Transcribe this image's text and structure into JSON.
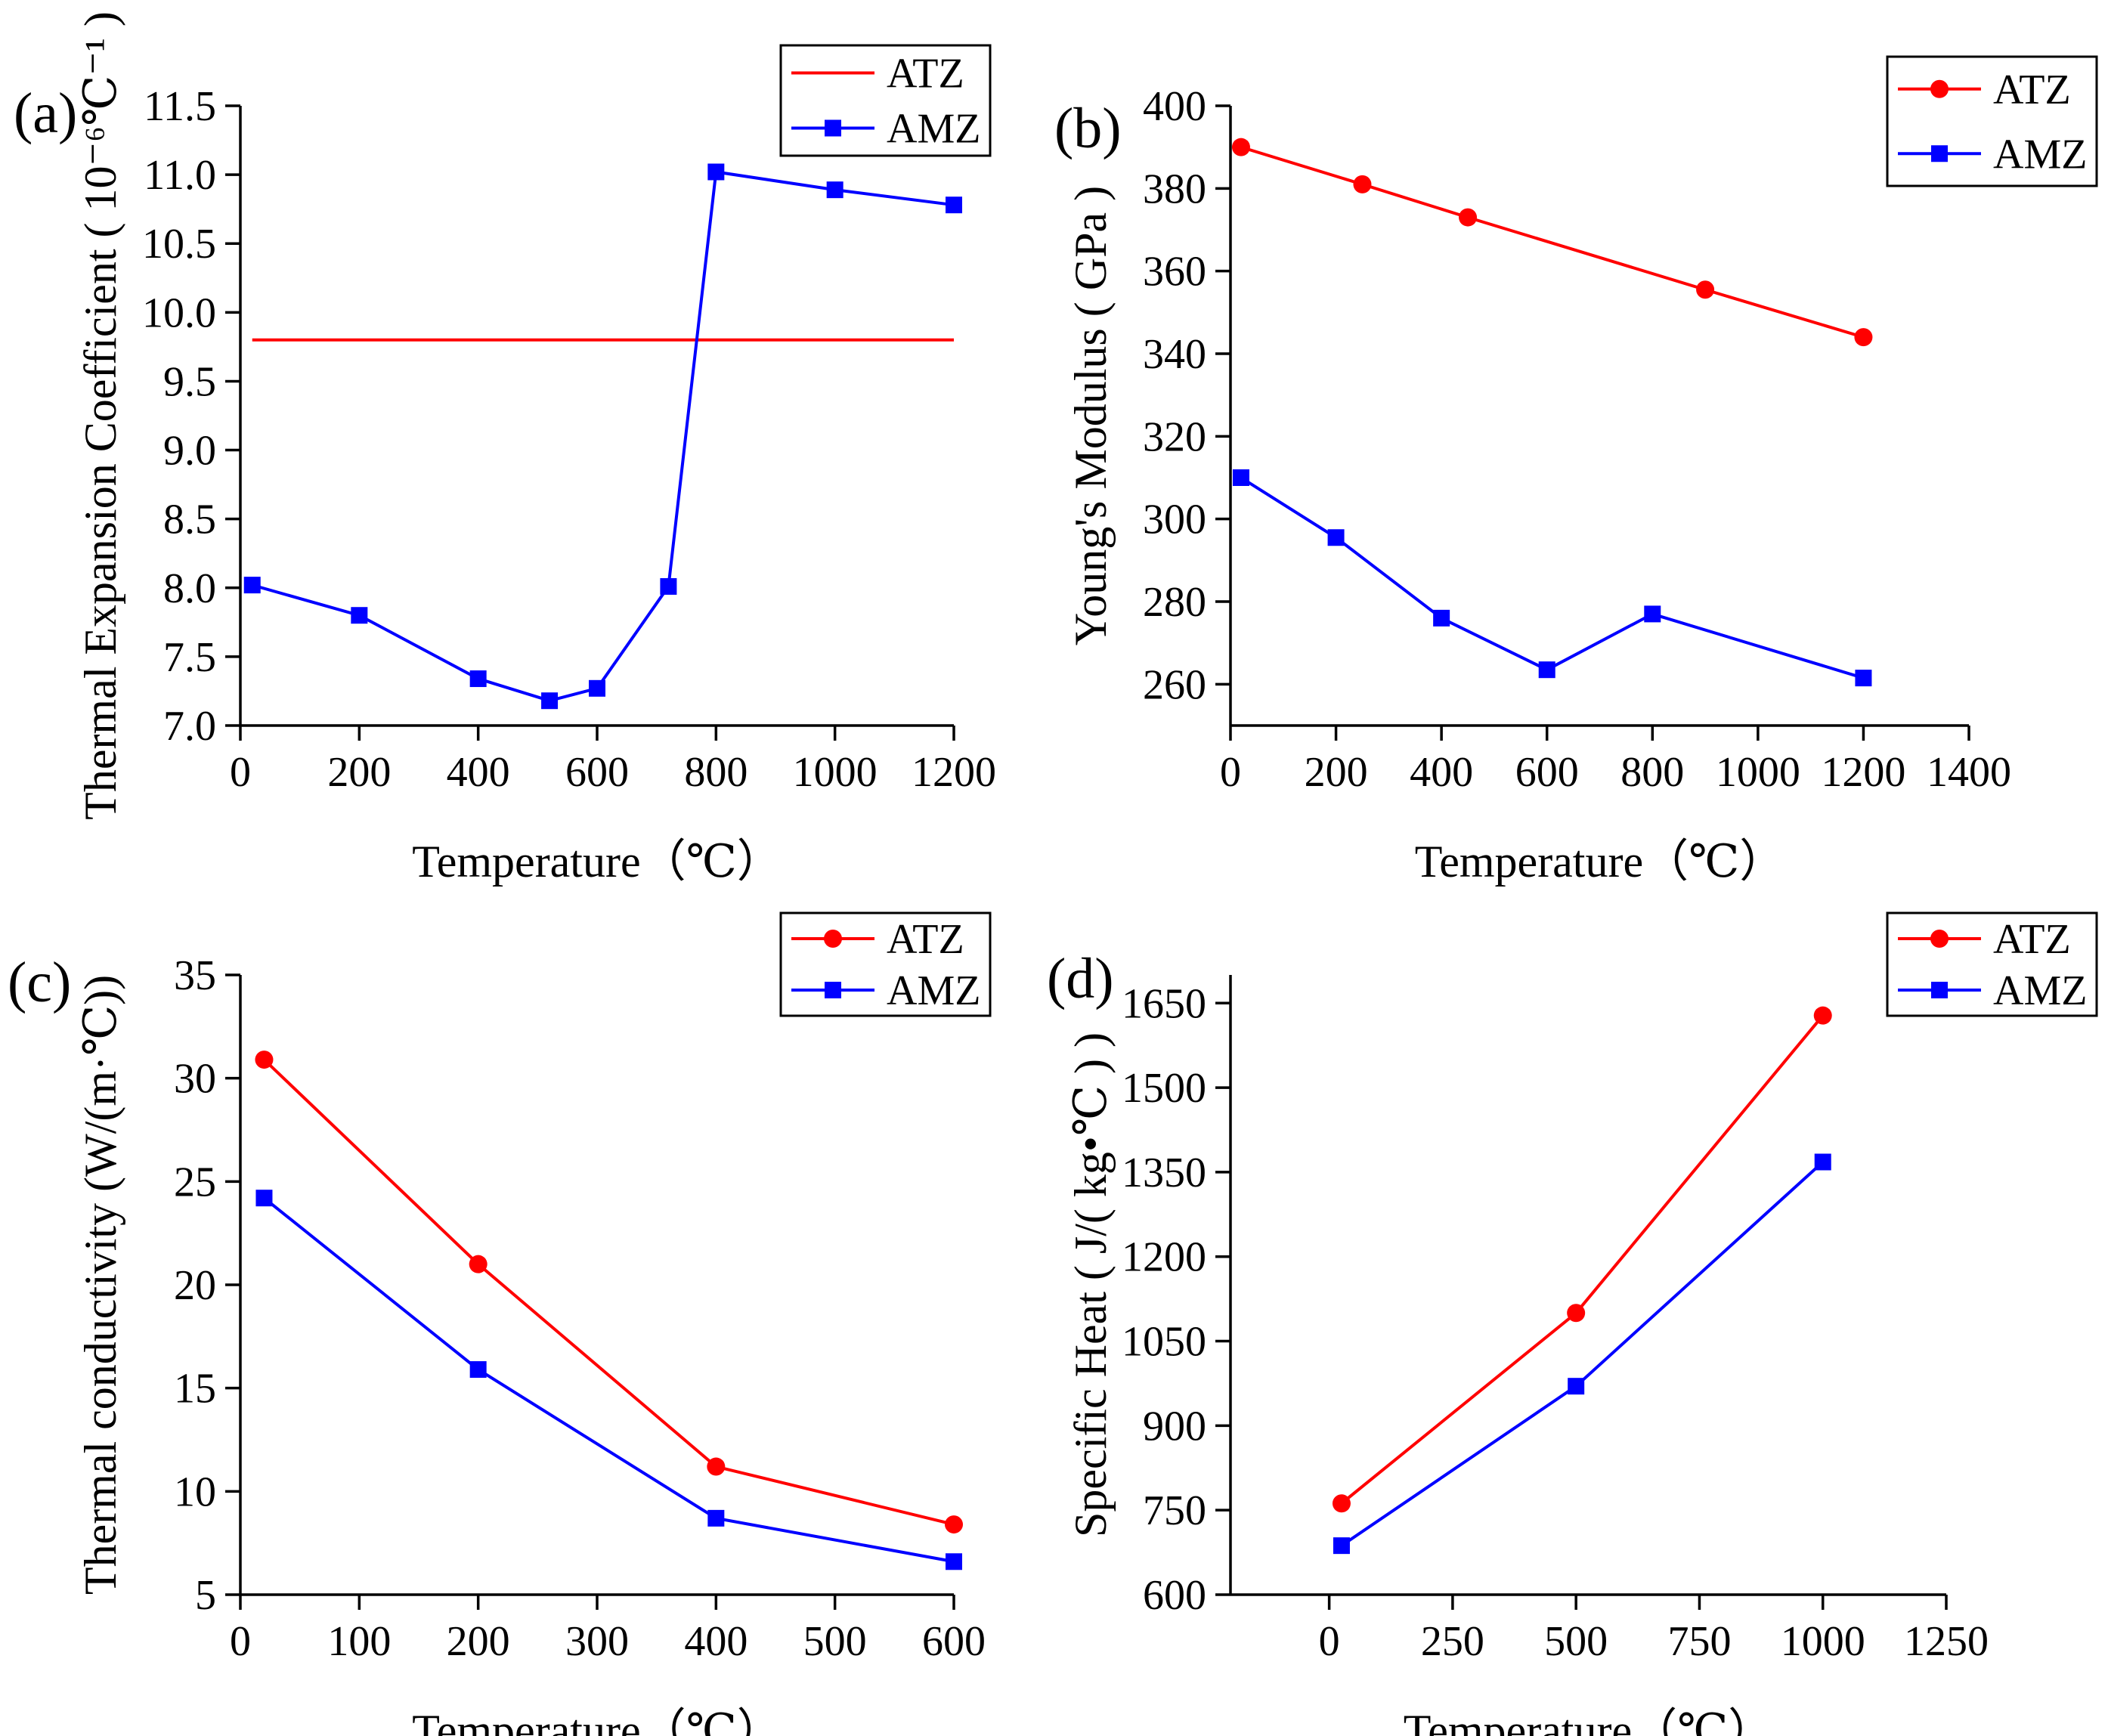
{
  "chart_data": [
    {
      "panel": "(a)",
      "type": "line",
      "xlabel": "Temperature（℃）",
      "ylabel": "Thermal Expansion Coefficient ( 10⁻⁶℃⁻¹ )",
      "xlim": [
        0,
        1200
      ],
      "ylim": [
        7.0,
        11.5
      ],
      "xticks": [
        0,
        200,
        400,
        600,
        800,
        1000,
        1200
      ],
      "yticks": [
        7.0,
        7.5,
        8.0,
        8.5,
        9.0,
        9.5,
        10.0,
        10.5,
        11.0,
        11.5
      ],
      "ytick_decimals": 1,
      "legend_position": "top-right",
      "series": [
        {
          "name": "ATZ",
          "color": "#ff0000",
          "marker": "none",
          "x": [
            20,
            1200
          ],
          "y": [
            9.8,
            9.8
          ]
        },
        {
          "name": "AMZ",
          "color": "#0000ff",
          "marker": "square",
          "x": [
            20,
            200,
            400,
            520,
            600,
            720,
            800,
            1000,
            1200
          ],
          "y": [
            8.02,
            7.8,
            7.34,
            7.18,
            7.27,
            8.01,
            11.02,
            10.89,
            10.78
          ]
        }
      ]
    },
    {
      "panel": "(b)",
      "type": "line",
      "xlabel": "Temperature（℃）",
      "ylabel": "Young's Modulus ( GPa )",
      "xlim": [
        0,
        1400
      ],
      "ylim": [
        250,
        400
      ],
      "xticks": [
        0,
        200,
        400,
        600,
        800,
        1000,
        1200,
        1400
      ],
      "yticks": [
        260,
        280,
        300,
        320,
        340,
        360,
        380,
        400
      ],
      "ytick_decimals": 0,
      "legend_position": "top-right",
      "series": [
        {
          "name": "ATZ",
          "color": "#ff0000",
          "marker": "circle",
          "x": [
            20,
            250,
            450,
            900,
            1200
          ],
          "y": [
            390,
            381,
            373,
            355.5,
            344
          ]
        },
        {
          "name": "AMZ",
          "color": "#0000ff",
          "marker": "square",
          "x": [
            20,
            200,
            400,
            600,
            800,
            1200
          ],
          "y": [
            310,
            295.5,
            276,
            263.5,
            277,
            261.5
          ]
        }
      ]
    },
    {
      "panel": "(c)",
      "type": "line",
      "xlabel": "Temperature（℃）",
      "ylabel": "Thermal conductivity (W/(m·℃))",
      "xlim": [
        0,
        600
      ],
      "ylim": [
        5,
        35
      ],
      "xticks": [
        0,
        100,
        200,
        300,
        400,
        500,
        600
      ],
      "yticks": [
        5,
        10,
        15,
        20,
        25,
        30,
        35
      ],
      "ytick_decimals": 0,
      "legend_position": "top-right",
      "series": [
        {
          "name": "ATZ",
          "color": "#ff0000",
          "marker": "circle",
          "x": [
            20,
            200,
            400,
            600
          ],
          "y": [
            30.9,
            21.0,
            11.2,
            8.4
          ]
        },
        {
          "name": "AMZ",
          "color": "#0000ff",
          "marker": "square",
          "x": [
            20,
            200,
            400,
            600
          ],
          "y": [
            24.2,
            15.9,
            8.7,
            6.6
          ]
        }
      ]
    },
    {
      "panel": "(d)",
      "type": "line",
      "xlabel": "Temperature（℃）",
      "ylabel": "Specific Heat ( J/( kg•℃ ) )",
      "xlim": [
        -200,
        1250
      ],
      "ylim": [
        600,
        1700
      ],
      "xticks": [
        0,
        250,
        500,
        750,
        1000,
        1250
      ],
      "yticks": [
        600,
        750,
        900,
        1050,
        1200,
        1350,
        1500,
        1650
      ],
      "ytick_decimals": 0,
      "legend_position": "top-right",
      "series": [
        {
          "name": "ATZ",
          "color": "#ff0000",
          "marker": "circle",
          "x": [
            25,
            500,
            1000
          ],
          "y": [
            762,
            1100,
            1628
          ]
        },
        {
          "name": "AMZ",
          "color": "#0000ff",
          "marker": "square",
          "x": [
            25,
            500,
            1000
          ],
          "y": [
            687,
            970,
            1368
          ]
        }
      ]
    }
  ]
}
